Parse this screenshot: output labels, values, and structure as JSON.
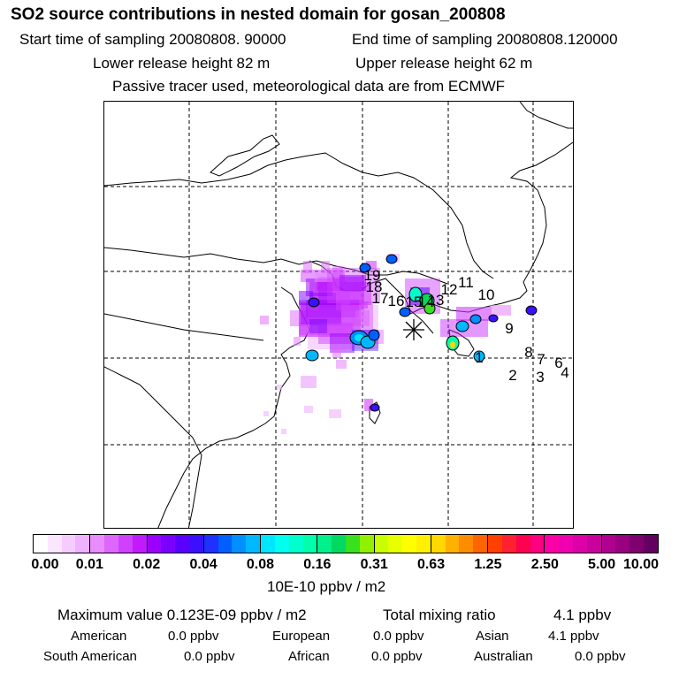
{
  "header": {
    "title": "SO2 source contributions in nested domain for gosan_200808",
    "start_time": "Start time of sampling 20080808. 90000",
    "end_time": "End time of sampling 20080808.120000",
    "lower_height": "Lower release height   82 m",
    "upper_height": "Upper release height   62 m",
    "note": "Passive tracer used, meteorological data are from ECMWF"
  },
  "map": {
    "receptor": "gosan",
    "source_labels": [
      "1",
      "2",
      "3",
      "4",
      "6",
      "7",
      "8",
      "9",
      "10",
      "11",
      "12",
      "13",
      "14",
      "15",
      "16",
      "17",
      "18",
      "19"
    ]
  },
  "colorbar": {
    "ticks": [
      "0.00",
      "0.01",
      "0.02",
      "0.04",
      "0.08",
      "0.16",
      "0.31",
      "0.63",
      "1.25",
      "2.50",
      "5.00",
      "10.00"
    ],
    "unit": "10E-10 ppbv / m2",
    "colors": [
      [
        "#ffffff",
        "#fbe6ff",
        "#f6ccff",
        "#efb2ff"
      ],
      [
        "#e88cff",
        "#de66ff",
        "#d040ff",
        "#c21aff"
      ],
      [
        "#9b00ff",
        "#7a00ff",
        "#5a00ff",
        "#3a10ff"
      ],
      [
        "#1f30ff",
        "#0060ff",
        "#0090ff",
        "#00b8ff"
      ],
      [
        "#00e6ff",
        "#00ffee",
        "#00ffcc",
        "#00ffaa"
      ],
      [
        "#00f08a",
        "#00d860",
        "#38e020",
        "#90f000"
      ],
      [
        "#c8ff00",
        "#e8ff00",
        "#ffff00",
        "#fff000"
      ],
      [
        "#ffd800",
        "#ffb000",
        "#ff8c00",
        "#ff6400"
      ],
      [
        "#ff4000",
        "#ff2030",
        "#ff0050",
        "#ff0080"
      ],
      [
        "#ff00a8",
        "#ee00b0",
        "#dc00a8",
        "#c8009c"
      ],
      [
        "#b00090",
        "#980080",
        "#800070",
        "#640060"
      ]
    ]
  },
  "footer": {
    "max_label": "Maximum value  0.123E-09 ppbv / m2",
    "total_label": "Total mixing ratio",
    "total_value": "4.1 ppbv",
    "regions": [
      {
        "name": "American",
        "value": "0.0 ppbv"
      },
      {
        "name": "European",
        "value": "0.0 ppbv"
      },
      {
        "name": "Asian",
        "value": "4.1 ppbv"
      },
      {
        "name": "South American",
        "value": "0.0 ppbv"
      },
      {
        "name": "African",
        "value": "0.0 ppbv"
      },
      {
        "name": "Australian",
        "value": "0.0 ppbv"
      }
    ]
  }
}
